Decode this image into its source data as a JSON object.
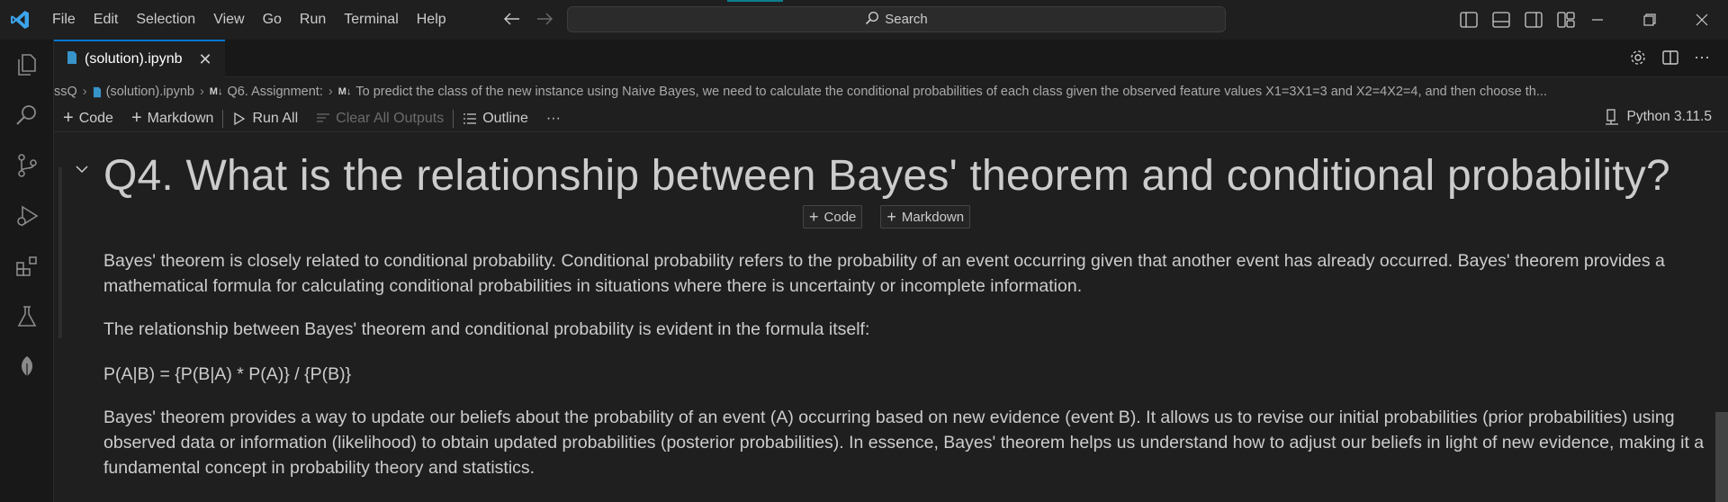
{
  "menu": [
    "File",
    "Edit",
    "Selection",
    "View",
    "Go",
    "Run",
    "Terminal",
    "Help"
  ],
  "search": {
    "label": "Search"
  },
  "tab": {
    "label": "(solution).ipynb",
    "close": "✕"
  },
  "breadcrumb": {
    "items": [
      "ssQ",
      "(solution).ipynb",
      "Q6. Assignment:",
      "To predict the class of the new instance using Naive Bayes, we need to calculate the conditional probabilities of each class given the observed feature values X1=3X1=3 and X2=4X2=4, and then choose th..."
    ],
    "md_badge": "M↓"
  },
  "toolbar": {
    "code": "Code",
    "markdown": "Markdown",
    "run_all": "Run All",
    "clear_outputs": "Clear All Outputs",
    "outline": "Outline",
    "more": "···",
    "kernel": "Python 3.11.5"
  },
  "cell": {
    "heading": "Q4. What is the relationship between Bayes' theorem and conditional probability?",
    "add_code": "Code",
    "add_markdown": "Markdown",
    "paragraphs": [
      "Bayes' theorem is closely related to conditional probability. Conditional probability refers to the probability of an event occurring given that another event has already occurred. Bayes' theorem provides a mathematical formula for calculating conditional probabilities in situations where there is uncertainty or incomplete information.",
      "The relationship between Bayes' theorem and conditional probability is evident in the formula itself:",
      "P(A|B) = {P(B|A) * P(A)} / {P(B)}",
      "Bayes' theorem provides a way to update our beliefs about the probability of an event (A) occurring based on new evidence (event B). It allows us to revise our initial probabilities (prior probabilities) using observed data or information (likelihood) to obtain updated probabilities (posterior probabilities). In essence, Bayes' theorem helps us understand how to adjust our beliefs in light of new evidence, making it a fundamental concept in probability theory and statistics."
    ]
  },
  "colors": {
    "accent": "#0078d4",
    "background": "#1f1f1f",
    "text": "#cccccc"
  }
}
